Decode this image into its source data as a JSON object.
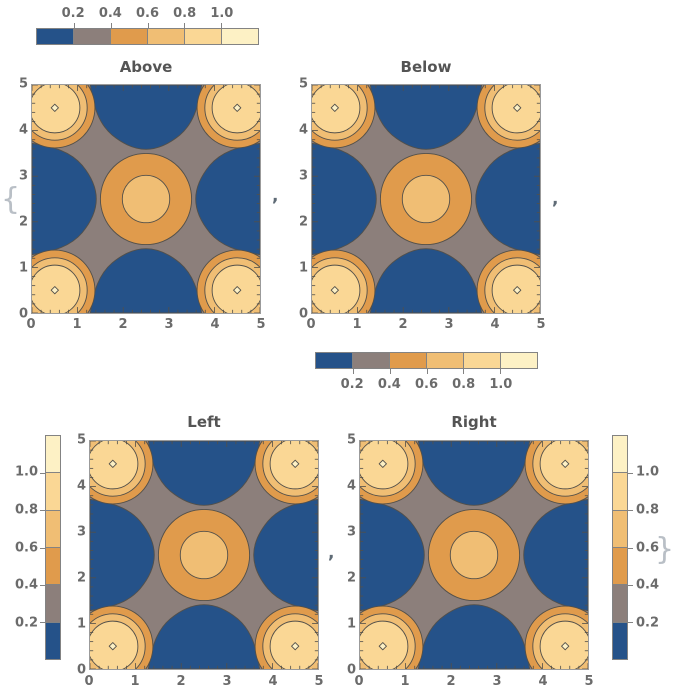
{
  "delimiters": {
    "open": "{",
    "comma": ",",
    "close": "}"
  },
  "colors": {
    "contour_line": "#53504A",
    "plot_frame": "#9B9B9B",
    "legend_frame": "#838383",
    "tick_label_text": "#6B6B6B",
    "title_text": "#545454",
    "brace_text": "#B9BFC6",
    "comma_text": "#5F6B76"
  },
  "chart_data": {
    "type": "heatmap",
    "note": "Four identical filled contour plots of a doubly periodic surface over [0,5]x[0,5]; they differ only in the placement of the color bar legend (Above, Below, Left, Right), shown as a Mathematica list {p1, p2, p3, p4}.",
    "x_range": [
      0,
      5
    ],
    "y_range": [
      0,
      5
    ],
    "x_ticks": [
      0,
      1,
      2,
      3,
      4,
      5
    ],
    "y_ticks": [
      0,
      1,
      2,
      3,
      4,
      5
    ],
    "contour_levels": [
      0.2,
      0.4,
      0.6,
      0.8,
      1.0
    ],
    "legend_labels": [
      "0.2",
      "0.4",
      "0.6",
      "0.8",
      "1.0"
    ],
    "band_colors": [
      "#255289",
      "#8C7F7B",
      "#E09B4C",
      "#F0BE74",
      "#FAD795",
      "#FDF1C5"
    ],
    "plots": [
      {
        "title": "Above",
        "legend_placement": "above"
      },
      {
        "title": "Below",
        "legend_placement": "below"
      },
      {
        "title": "Left",
        "legend_placement": "left"
      },
      {
        "title": "Right",
        "legend_placement": "right"
      }
    ],
    "features": {
      "corner_peaks": {
        "centers": [
          [
            0.5,
            0.5
          ],
          [
            4.5,
            0.5
          ],
          [
            0.5,
            4.5
          ],
          [
            4.5,
            4.5
          ]
        ],
        "peak_value": "> 1.0"
      },
      "center_peak": {
        "center": [
          2.5,
          2.5
        ],
        "peak_value": "0.6 - 0.8"
      },
      "valleys": {
        "locations": "midpoints of each plot edge",
        "value": "< 0.2"
      }
    },
    "legend_position_values_increase": "left-to-right (horizontal bars) and bottom-to-top (vertical bars)"
  }
}
